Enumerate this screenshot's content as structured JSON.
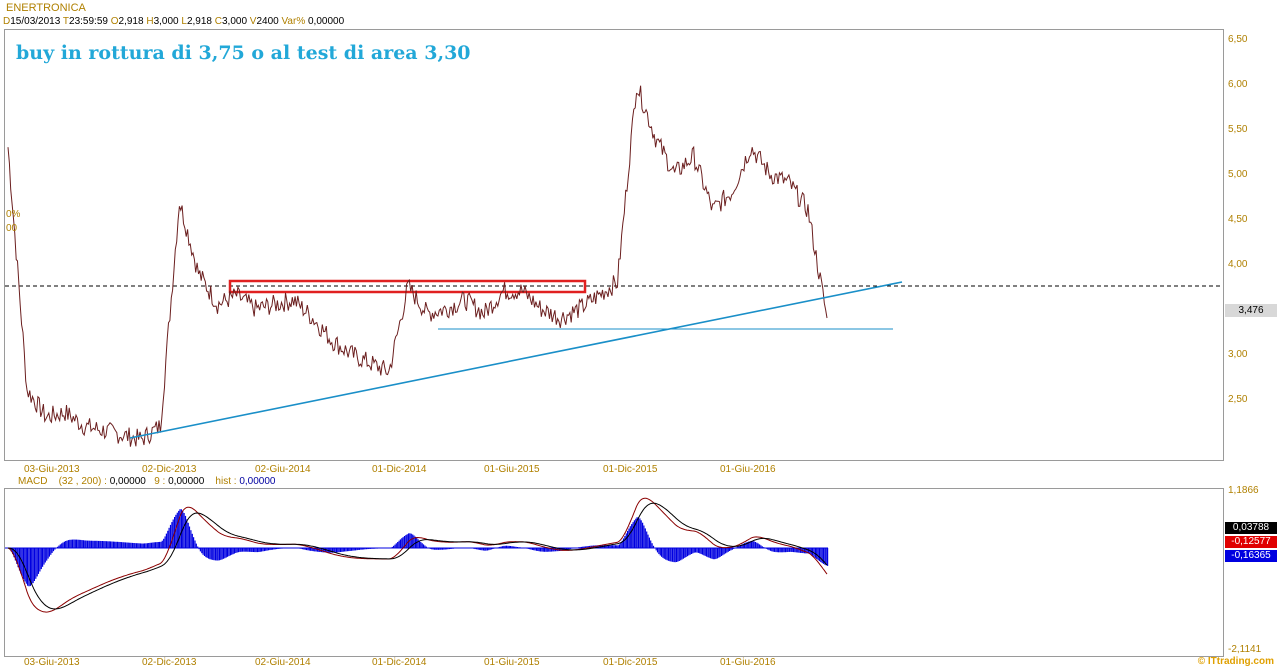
{
  "header": {
    "title": "ENERTRONICA",
    "date_key": "D",
    "date": "15/03/2013",
    "time_key": "T",
    "time": "23:59:59",
    "open_key": "O",
    "open": "2,918",
    "high_key": "H",
    "high": "3,000",
    "low_key": "L",
    "low": "2,918",
    "close_key": "C",
    "close": "3,000",
    "volume_key": "V",
    "volume": "2400",
    "var_key": "Var%",
    "var": "0,00000"
  },
  "annotation": "buy in rottura di 3,75 o al test di area 3,30",
  "left_labels": [
    "0%",
    "00"
  ],
  "price_axis": [
    "6,50",
    "6,00",
    "5,50",
    "5,00",
    "4,50",
    "4,00",
    "3,00",
    "2,50"
  ],
  "price_tag": "3,476",
  "x_axis": [
    "03-Giu-2013",
    "02-Dic-2013",
    "02-Giu-2014",
    "01-Dic-2014",
    "01-Giu-2015",
    "01-Dic-2015",
    "01-Giu-2016"
  ],
  "macd": {
    "name": "MACD",
    "params": "(32 , 200) :",
    "macd_value": "0,00000",
    "signal_key": "9 :",
    "signal_value": "0,00000",
    "hist_key": "hist :",
    "hist_value": "0,00000",
    "axis_top": "1,1866",
    "axis_bottom": "-2,1141",
    "tags": [
      {
        "text": "0,03788",
        "color": "#000000"
      },
      {
        "text": "-0,12577",
        "color": "#e00000"
      },
      {
        "text": "-0,16365",
        "color": "#0000e0"
      }
    ]
  },
  "brand": "© ITtrading.com",
  "colors": {
    "price": "#6b1f1f",
    "trend": "#1a8fc8",
    "box": "#e02020",
    "hist": "#0000e0",
    "macd": "#8b0000",
    "signal": "#000000"
  },
  "chart_data": {
    "type": "line",
    "title": "ENERTRONICA",
    "x": [
      "2013-03",
      "2013-04",
      "2013-05",
      "2013-06",
      "2013-07",
      "2013-08",
      "2013-09",
      "2013-10",
      "2013-11",
      "2013-12",
      "2014-01",
      "2014-02",
      "2014-03",
      "2014-04",
      "2014-05",
      "2014-06",
      "2014-07",
      "2014-08",
      "2014-09",
      "2014-10",
      "2014-11",
      "2014-12",
      "2015-01",
      "2015-02",
      "2015-03",
      "2015-04",
      "2015-05",
      "2015-06",
      "2015-07",
      "2015-08",
      "2015-09",
      "2015-10",
      "2015-11",
      "2015-12",
      "2016-01",
      "2016-02",
      "2016-03",
      "2016-04",
      "2016-05",
      "2016-06",
      "2016-07",
      "2016-08",
      "2016-09",
      "2016-10"
    ],
    "series": [
      {
        "name": "ENERTRONICA",
        "values": [
          5.3,
          2.6,
          2.3,
          2.35,
          2.2,
          2.15,
          2.1,
          2.05,
          2.2,
          4.7,
          3.9,
          3.55,
          3.65,
          3.5,
          3.55,
          3.6,
          3.4,
          3.15,
          3.0,
          2.9,
          2.8,
          3.75,
          3.45,
          3.5,
          3.6,
          3.45,
          3.7,
          3.7,
          3.5,
          3.4,
          3.5,
          3.65,
          3.8,
          6.0,
          5.4,
          5.0,
          5.2,
          4.6,
          4.8,
          5.3,
          5.0,
          4.9,
          4.6,
          3.4
        ]
      }
    ],
    "trendline": {
      "from": [
        "2013-11",
        2.1
      ],
      "to": [
        "2016-12",
        3.75
      ]
    },
    "horizontal_levels": [
      3.75,
      3.3
    ],
    "ylim": [
      2.0,
      6.5
    ]
  }
}
